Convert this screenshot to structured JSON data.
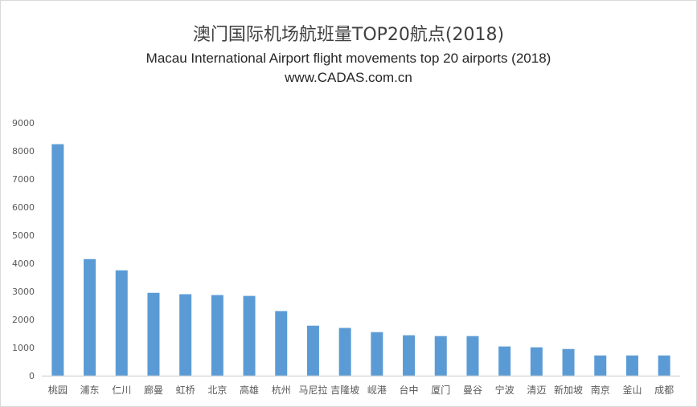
{
  "chart_data": {
    "type": "bar",
    "title": "澳门国际机场航班量TOP20航点(2018)",
    "subtitle": "Macau International Airport  flight movements top 20 airports (2018)",
    "source": "www.CADAS.com.cn",
    "categories": [
      "桃园",
      "浦东",
      "仁川",
      "廊曼",
      "虹桥",
      "北京",
      "高雄",
      "杭州",
      "马尼拉",
      "吉隆坡",
      "岘港",
      "台中",
      "厦门",
      "曼谷",
      "宁波",
      "清迈",
      "新加坡",
      "南京",
      "釜山",
      "成都"
    ],
    "values": [
      8240,
      4150,
      3750,
      2950,
      2900,
      2870,
      2840,
      2300,
      1780,
      1700,
      1550,
      1440,
      1410,
      1410,
      1040,
      1010,
      950,
      720,
      720,
      720
    ],
    "ylim": [
      0,
      9000
    ],
    "yticks": [
      0,
      1000,
      2000,
      3000,
      4000,
      5000,
      6000,
      7000,
      8000,
      9000
    ],
    "xlabel": "",
    "ylabel": "",
    "grid": false,
    "legend": "none",
    "bar_color": "#5b9bd5"
  }
}
